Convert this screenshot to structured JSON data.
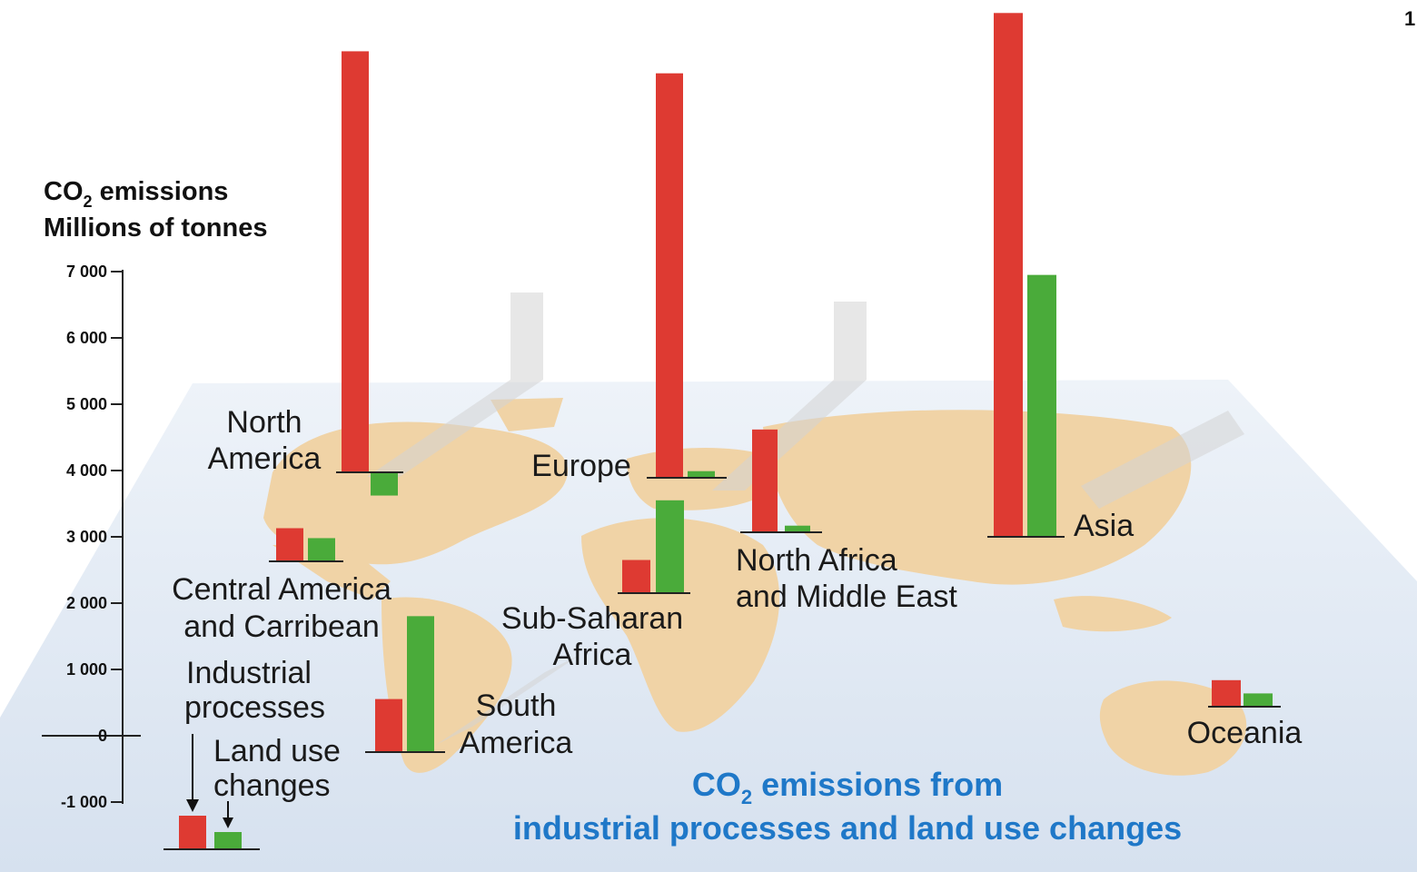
{
  "colors": {
    "industrial": "#de3a32",
    "land_use": "#4aab3a",
    "map_plane": "#dde6f2",
    "land": "#f0d3a6",
    "title_blue": "#1f78c8"
  },
  "corner_text": "1",
  "chart_data": {
    "type": "bar",
    "title_main": "CO",
    "title_sub": "2",
    "title_rest": " emissions from",
    "title_line2": "industrial processes and land use changes",
    "ylabel_main": "CO",
    "ylabel_sub": "2",
    "ylabel_rest": " emissions",
    "ylabel_line2": "Millions of tonnes",
    "ylim": [
      -1000,
      7000
    ],
    "yticks": [
      {
        "value": 7000,
        "label": "7 000"
      },
      {
        "value": 6000,
        "label": "6 000"
      },
      {
        "value": 5000,
        "label": "5 000"
      },
      {
        "value": 4000,
        "label": "4 000"
      },
      {
        "value": 3000,
        "label": "3 000"
      },
      {
        "value": 2000,
        "label": "2 000"
      },
      {
        "value": 1000,
        "label": "1 000"
      },
      {
        "value": 0,
        "label": "0"
      },
      {
        "value": -1000,
        "label": "-1 000"
      }
    ],
    "legend": {
      "industrial_lines": [
        "Industrial",
        "processes"
      ],
      "land_use_lines": [
        "Land use",
        "changes"
      ]
    },
    "series": [
      {
        "key": "industrial",
        "name": "Industrial processes"
      },
      {
        "key": "land_use",
        "name": "Land use changes"
      }
    ],
    "regions": [
      {
        "label_lines": [
          "North",
          "America"
        ],
        "industrial": 6350,
        "land_use": -350
      },
      {
        "label_lines": [
          "Central America",
          "and Carribean"
        ],
        "industrial": 500,
        "land_use": 350
      },
      {
        "label_lines": [
          "South",
          "America"
        ],
        "industrial": 800,
        "land_use": 2050
      },
      {
        "label_lines": [
          "Europe"
        ],
        "industrial": 6100,
        "land_use": 100
      },
      {
        "label_lines": [
          "Sub-Saharan",
          "Africa"
        ],
        "industrial": 500,
        "land_use": 1400
      },
      {
        "label_lines": [
          "North Africa",
          "and Middle East"
        ],
        "industrial": 1550,
        "land_use": 100
      },
      {
        "label_lines": [
          "Asia"
        ],
        "industrial": 7900,
        "land_use": 3950
      },
      {
        "label_lines": [
          "Oceania"
        ],
        "industrial": 400,
        "land_use": 200
      }
    ]
  }
}
